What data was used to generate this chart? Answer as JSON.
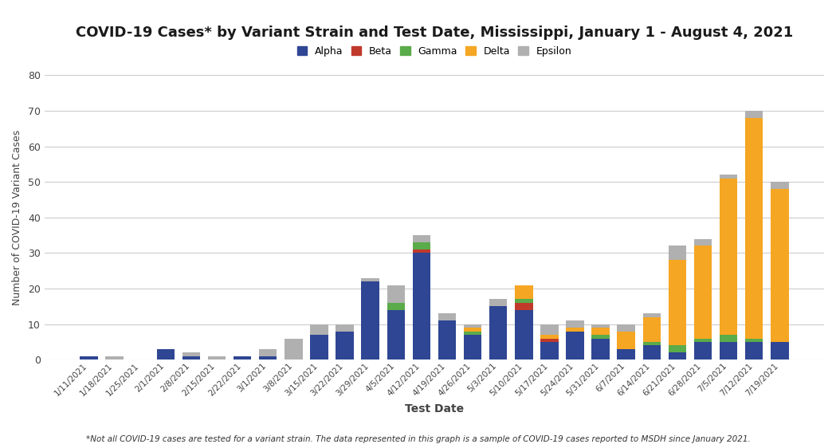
{
  "title": "COVID-19 Cases* by Variant Strain and Test Date, Mississippi, January 1 - August 4, 2021",
  "xlabel": "Test Date",
  "ylabel": "Number of COVID-19 Variant Cases",
  "footnote": "*Not all COVID-19 cases are tested for a variant strain. The data represented in this graph is a sample of COVID-19 cases reported to MSDH since January 2021.",
  "ylim": [
    0,
    80
  ],
  "yticks": [
    0,
    10,
    20,
    30,
    40,
    50,
    60,
    70,
    80
  ],
  "colors": {
    "Alpha": "#2E4693",
    "Beta": "#C0392B",
    "Gamma": "#5AAB4A",
    "Delta": "#F5A623",
    "Epsilon": "#B0B0B0"
  },
  "dates": [
    "1/11/2021",
    "1/18/2021",
    "1/25/2021",
    "2/1/2021",
    "2/8/2021",
    "2/15/2021",
    "2/22/2021",
    "3/1/2021",
    "3/8/2021",
    "3/15/2021",
    "3/22/2021",
    "3/29/2021",
    "4/5/2021",
    "4/12/2021",
    "4/19/2021",
    "4/26/2021",
    "5/3/2021",
    "5/10/2021",
    "5/17/2021",
    "5/24/2021",
    "5/31/2021",
    "6/7/2021",
    "6/14/2021",
    "6/21/2021",
    "6/28/2021",
    "7/5/2021",
    "7/12/2021",
    "7/19/2021"
  ],
  "Alpha": [
    1,
    0,
    0,
    3,
    1,
    0,
    1,
    1,
    0,
    7,
    8,
    22,
    14,
    30,
    11,
    7,
    15,
    14,
    5,
    8,
    6,
    3,
    4,
    2,
    5,
    5,
    5,
    5
  ],
  "Beta": [
    0,
    0,
    0,
    0,
    0,
    0,
    0,
    0,
    0,
    0,
    0,
    0,
    0,
    1,
    0,
    0,
    0,
    2,
    1,
    0,
    0,
    0,
    0,
    0,
    0,
    0,
    0,
    0
  ],
  "Gamma": [
    0,
    0,
    0,
    0,
    0,
    0,
    0,
    0,
    0,
    0,
    0,
    0,
    2,
    2,
    0,
    1,
    0,
    1,
    0,
    0,
    1,
    0,
    1,
    2,
    1,
    2,
    1,
    0
  ],
  "Delta": [
    0,
    0,
    0,
    0,
    0,
    0,
    0,
    0,
    0,
    0,
    0,
    0,
    0,
    0,
    0,
    1,
    0,
    4,
    1,
    1,
    2,
    5,
    7,
    24,
    26,
    44,
    62,
    43
  ],
  "Epsilon": [
    0,
    1,
    0,
    0,
    1,
    1,
    0,
    2,
    6,
    3,
    2,
    1,
    5,
    2,
    2,
    1,
    2,
    0,
    3,
    2,
    1,
    2,
    1,
    4,
    2,
    1,
    2,
    2
  ]
}
